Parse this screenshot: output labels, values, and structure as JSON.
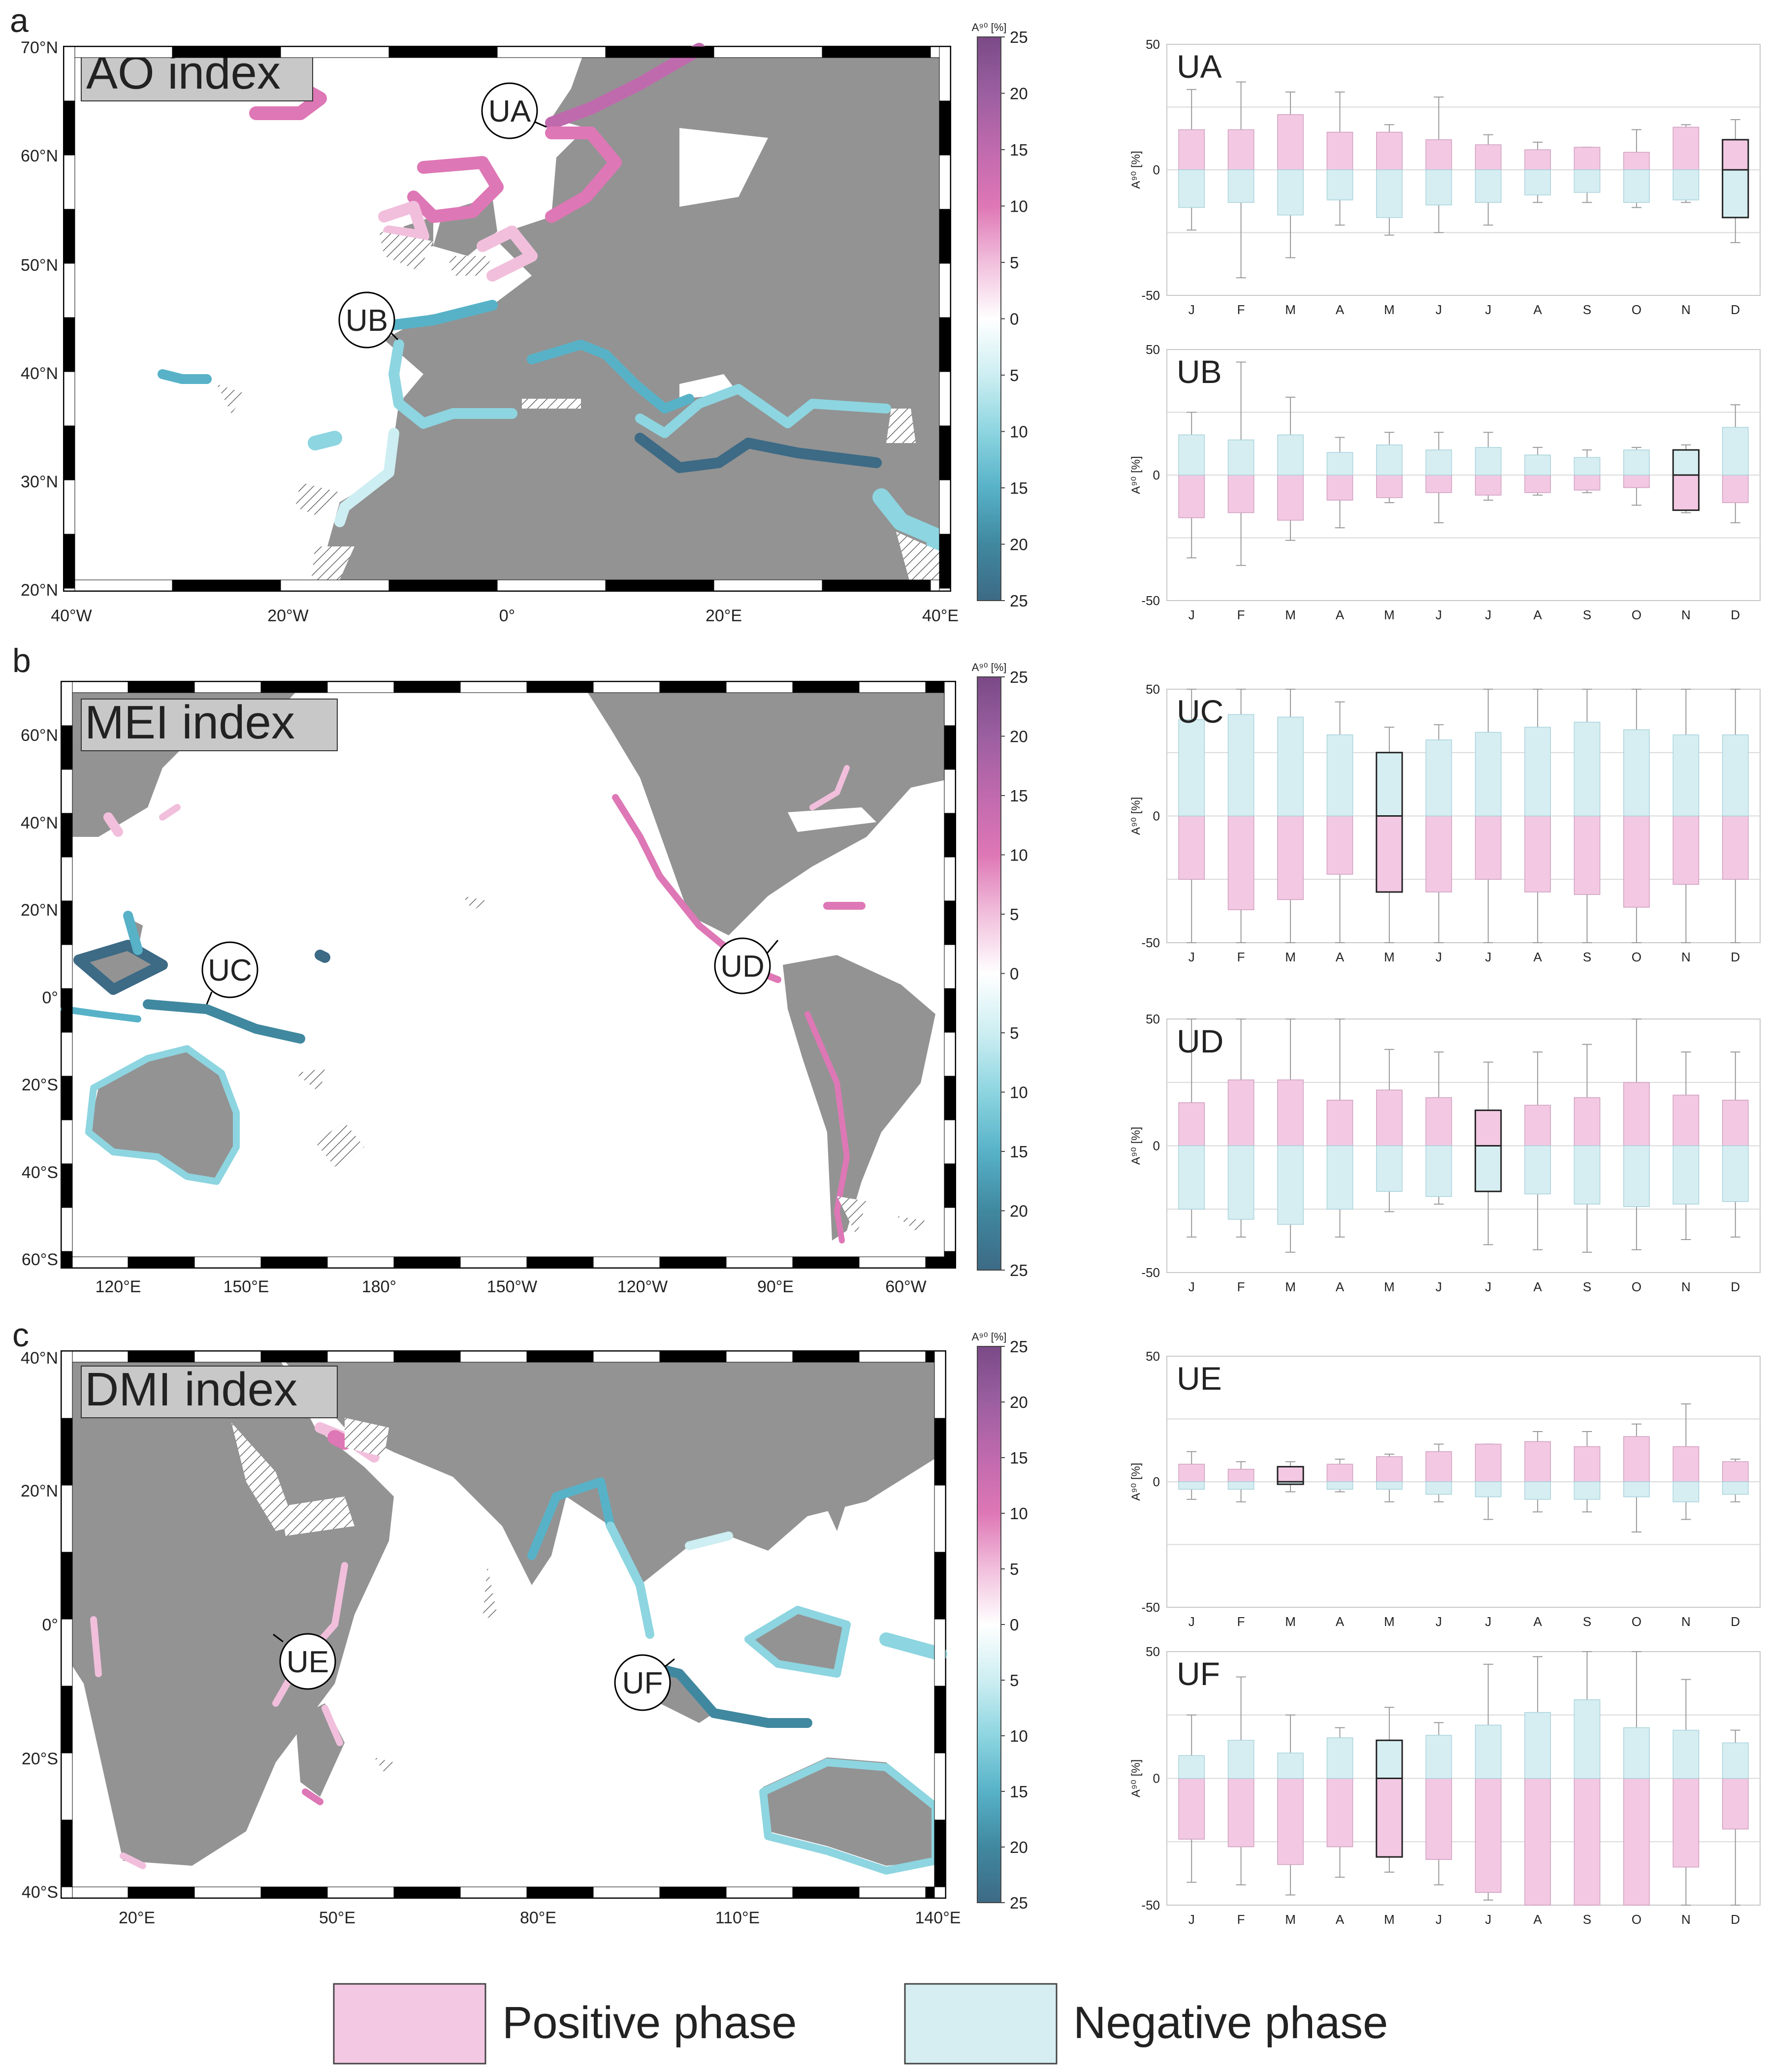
{
  "colors": {
    "positive": "#f3c8e3",
    "negative": "#d6eef2",
    "land": "#939393",
    "grid": "#d9d9d9",
    "box_edge_pos": "#cfa0c0",
    "box_edge_neg": "#a9d3dc",
    "whisker": "#9a9a9a",
    "highlight": "#222222"
  },
  "colorbar": {
    "label": "A⁹⁰ [%]",
    "ticks": [
      "25",
      "20",
      "15",
      "10",
      "5",
      "0",
      "5",
      "10",
      "15",
      "20",
      "25"
    ],
    "stops": [
      "#7a4a86",
      "#9b5fa0",
      "#c06aae",
      "#de77b5",
      "#f1bfdc",
      "#ffffff",
      "#cdeef2",
      "#8dd5e0",
      "#57b2c8",
      "#40889f",
      "#3d6a85"
    ]
  },
  "panels": [
    {
      "letter": "a",
      "map_title": "AO index",
      "lon_ticks": [
        "40°W",
        "20°W",
        "0°",
        "20°E",
        "40°E"
      ],
      "lat_ticks": [
        "70°N",
        "60°N",
        "50°N",
        "40°N",
        "30°N",
        "20°N"
      ],
      "site_labels": [
        "UA",
        "UB"
      ]
    },
    {
      "letter": "b",
      "map_title": "MEI index",
      "lon_ticks": [
        "120°E",
        "150°E",
        "180°",
        "150°W",
        "120°W",
        "90°E",
        "60°W"
      ],
      "lat_ticks": [
        "60°N",
        "40°N",
        "20°N",
        "0°",
        "20°S",
        "40°S",
        "60°S"
      ],
      "site_labels": [
        "UC",
        "UD"
      ]
    },
    {
      "letter": "c",
      "map_title": "DMI index",
      "lon_ticks": [
        "20°E",
        "50°E",
        "80°E",
        "110°E",
        "140°E"
      ],
      "lat_ticks": [
        "40°N",
        "20°N",
        "0°",
        "20°S",
        "40°S"
      ],
      "site_labels": [
        "UE",
        "UF"
      ]
    }
  ],
  "legend": {
    "positive_label": "Positive phase",
    "negative_label": "Negative phase"
  },
  "chart_data": [
    {
      "type": "bar",
      "title": "UA",
      "ylabel": "A⁹⁰ [%]",
      "ylim": [
        -50,
        50
      ],
      "yticks": [
        "50",
        "0",
        "-50"
      ],
      "categories": [
        "J",
        "F",
        "M",
        "A",
        "M",
        "J",
        "J",
        "A",
        "S",
        "O",
        "N",
        "D"
      ],
      "highlight_month_index": 11,
      "series": [
        {
          "name": "Positive phase",
          "values": [
            16,
            16,
            22,
            15,
            15,
            12,
            10,
            8,
            9,
            7,
            17,
            12
          ],
          "whisker": [
            32,
            35,
            31,
            31,
            18,
            29,
            14,
            11,
            9,
            16,
            18,
            20
          ]
        },
        {
          "name": "Negative phase",
          "values": [
            -15,
            -13,
            -18,
            -12,
            -19,
            -14,
            -13,
            -10,
            -9,
            -13,
            -12,
            -19
          ],
          "whisker": [
            -24,
            -43,
            -35,
            -22,
            -26,
            -25,
            -22,
            -13,
            -13,
            -15,
            -13,
            -29
          ]
        }
      ]
    },
    {
      "type": "bar",
      "title": "UB",
      "ylabel": "A⁹⁰ [%]",
      "ylim": [
        -50,
        50
      ],
      "yticks": [
        "50",
        "0",
        "-50"
      ],
      "categories": [
        "J",
        "F",
        "M",
        "A",
        "M",
        "J",
        "J",
        "A",
        "S",
        "O",
        "N",
        "D"
      ],
      "highlight_month_index": 10,
      "series": [
        {
          "name": "Positive phase",
          "values": [
            -17,
            -15,
            -18,
            -10,
            -9,
            -7,
            -8,
            -7,
            -6,
            -5,
            -14,
            -11
          ],
          "whisker": [
            -33,
            -36,
            -26,
            -21,
            -11,
            -19,
            -10,
            -8,
            -7,
            -12,
            -15,
            -19
          ]
        },
        {
          "name": "Negative phase",
          "values": [
            16,
            14,
            16,
            9,
            12,
            10,
            11,
            8,
            7,
            10,
            10,
            19
          ],
          "whisker": [
            25,
            45,
            31,
            15,
            17,
            17,
            17,
            11,
            10,
            11,
            12,
            28
          ]
        }
      ]
    },
    {
      "type": "bar",
      "title": "UC",
      "ylabel": "A⁹⁰ [%]",
      "ylim": [
        -50,
        50
      ],
      "yticks": [
        "50",
        "0",
        "-50"
      ],
      "categories": [
        "J",
        "F",
        "M",
        "A",
        "M",
        "J",
        "J",
        "A",
        "S",
        "O",
        "N",
        "D"
      ],
      "highlight_month_index": 4,
      "series": [
        {
          "name": "Positive phase",
          "values": [
            -25,
            -37,
            -33,
            -23,
            -30,
            -30,
            -25,
            -30,
            -31,
            -36,
            -27,
            -25
          ],
          "whisker": [
            -50,
            -50,
            -50,
            -50,
            -50,
            -50,
            -50,
            -50,
            -50,
            -50,
            -50,
            -50
          ]
        },
        {
          "name": "Negative phase",
          "values": [
            38,
            40,
            39,
            32,
            25,
            30,
            33,
            35,
            37,
            34,
            32,
            32
          ],
          "whisker": [
            50,
            50,
            50,
            45,
            35,
            36,
            50,
            50,
            50,
            50,
            50,
            50
          ]
        }
      ]
    },
    {
      "type": "bar",
      "title": "UD",
      "ylabel": "A⁹⁰ [%]",
      "ylim": [
        -50,
        50
      ],
      "yticks": [
        "50",
        "0",
        "-50"
      ],
      "categories": [
        "J",
        "F",
        "M",
        "A",
        "M",
        "J",
        "J",
        "A",
        "S",
        "O",
        "N",
        "D"
      ],
      "highlight_month_index": 6,
      "series": [
        {
          "name": "Positive phase",
          "values": [
            17,
            26,
            26,
            18,
            22,
            19,
            14,
            16,
            19,
            25,
            20,
            18
          ],
          "whisker": [
            50,
            50,
            50,
            50,
            38,
            37,
            33,
            37,
            40,
            50,
            37,
            37
          ]
        },
        {
          "name": "Negative phase",
          "values": [
            -25,
            -29,
            -31,
            -25,
            -18,
            -20,
            -18,
            -19,
            -23,
            -24,
            -23,
            -22
          ],
          "whisker": [
            -36,
            -36,
            -42,
            -36,
            -26,
            -23,
            -39,
            -41,
            -42,
            -41,
            -37,
            -36
          ]
        }
      ]
    },
    {
      "type": "bar",
      "title": "UE",
      "ylabel": "A⁹⁰ [%]",
      "ylim": [
        -50,
        50
      ],
      "yticks": [
        "50",
        "0",
        "-50"
      ],
      "categories": [
        "J",
        "F",
        "M",
        "A",
        "M",
        "J",
        "J",
        "A",
        "S",
        "O",
        "N",
        "D"
      ],
      "highlight_month_index": 2,
      "series": [
        {
          "name": "Positive phase",
          "values": [
            7,
            5,
            6,
            7,
            10,
            12,
            15,
            16,
            14,
            18,
            14,
            8
          ],
          "whisker": [
            12,
            8,
            8,
            9,
            11,
            15,
            15,
            20,
            20,
            23,
            31,
            9
          ]
        },
        {
          "name": "Negative phase",
          "values": [
            -3,
            -3,
            -1,
            -3,
            -3,
            -5,
            -6,
            -7,
            -7,
            -6,
            -8,
            -5
          ],
          "whisker": [
            -7,
            -8,
            -4,
            -4,
            -8,
            -8,
            -15,
            -12,
            -12,
            -20,
            -15,
            -8
          ]
        }
      ]
    },
    {
      "type": "bar",
      "title": "UF",
      "ylabel": "A⁹⁰ [%]",
      "ylim": [
        -50,
        50
      ],
      "yticks": [
        "50",
        "0",
        "-50"
      ],
      "categories": [
        "J",
        "F",
        "M",
        "A",
        "M",
        "J",
        "J",
        "A",
        "S",
        "O",
        "N",
        "D"
      ],
      "highlight_month_index": 4,
      "series": [
        {
          "name": "Positive phase",
          "values": [
            -24,
            -27,
            -34,
            -27,
            -31,
            -32,
            -45,
            -50,
            -50,
            -50,
            -35,
            -20
          ],
          "whisker": [
            -41,
            -42,
            -46,
            -39,
            -37,
            -42,
            -48,
            -50,
            -50,
            -50,
            -50,
            -50
          ]
        },
        {
          "name": "Negative phase",
          "values": [
            9,
            15,
            10,
            16,
            15,
            17,
            21,
            26,
            31,
            20,
            19,
            14
          ],
          "whisker": [
            25,
            40,
            25,
            20,
            28,
            22,
            45,
            48,
            50,
            50,
            39,
            19
          ]
        }
      ]
    }
  ]
}
